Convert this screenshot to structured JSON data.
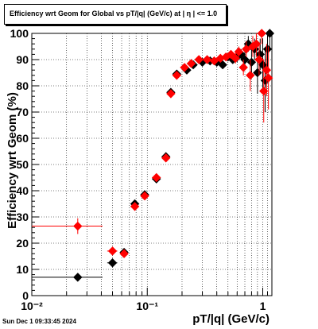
{
  "chart_data": {
    "type": "scatter",
    "title": "Efficiency wrt Geom for Global vs pT/|q| (GeV/c) at |  η  | <= 1.0",
    "xlabel": "pT/|q| (GeV/c)",
    "ylabel": "Efficiency wrt Geom (%)",
    "x_scale": "log",
    "xlim": [
      0.01,
      1.2
    ],
    "ylim": [
      0,
      100
    ],
    "x_tick_labels": [
      "10⁻²",
      "10⁻¹",
      "1"
    ],
    "y_tick_labels": [
      "0",
      "10",
      "20",
      "30",
      "40",
      "50",
      "60",
      "70",
      "80",
      "90",
      "100"
    ],
    "grid": true,
    "series": [
      {
        "marker": "diamond",
        "color": "#000000",
        "points": [
          {
            "x": 0.025,
            "y": 7,
            "xerr": [
              0.01,
              0.041
            ],
            "yerr": 0.5
          },
          {
            "x": 0.05,
            "y": 12.5,
            "xerr": [
              0.045,
              0.055
            ],
            "yerr": 1.2
          },
          {
            "x": 0.063,
            "y": 16.5,
            "xerr": [
              0.058,
              0.068
            ],
            "yerr": 1.2
          },
          {
            "x": 0.078,
            "y": 35,
            "xerr": [
              0.073,
              0.083
            ],
            "yerr": 1.3
          },
          {
            "x": 0.095,
            "y": 38.5,
            "xerr": [
              0.088,
              0.102
            ],
            "yerr": 1
          },
          {
            "x": 0.12,
            "y": 44.5,
            "xerr": [
              0.11,
              0.13
            ],
            "yerr": 1
          },
          {
            "x": 0.145,
            "y": 53,
            "xerr": [
              0.138,
              0.152
            ],
            "yerr": 1
          },
          {
            "x": 0.16,
            "y": 77.5,
            "xerr": [
              0.155,
              0.165
            ],
            "yerr": 1.5
          },
          {
            "x": 0.18,
            "y": 84.5,
            "xerr": [
              0.175,
              0.185
            ],
            "yerr": 1.5
          },
          {
            "x": 0.22,
            "y": 86,
            "xerr": [
              0.21,
              0.23
            ],
            "yerr": 1
          },
          {
            "x": 0.25,
            "y": 88,
            "xerr": [
              0.24,
              0.26
            ],
            "yerr": 1
          },
          {
            "x": 0.3,
            "y": 89,
            "xerr": [
              0.29,
              0.31
            ],
            "yerr": 1
          },
          {
            "x": 0.35,
            "y": 89.5,
            "xerr": [
              0.34,
              0.36
            ],
            "yerr": 1
          },
          {
            "x": 0.4,
            "y": 89,
            "xerr": [
              0.39,
              0.41
            ],
            "yerr": 1
          },
          {
            "x": 0.45,
            "y": 88,
            "xerr": [
              0.44,
              0.46
            ],
            "yerr": 1
          },
          {
            "x": 0.5,
            "y": 91,
            "xerr": [
              0.49,
              0.51
            ],
            "yerr": 1.5
          },
          {
            "x": 0.55,
            "y": 90,
            "xerr": [
              0.54,
              0.56
            ],
            "yerr": 1.5
          },
          {
            "x": 0.6,
            "y": 91,
            "xerr": [
              0.59,
              0.61
            ],
            "yerr": 2
          },
          {
            "x": 0.65,
            "y": 92,
            "xerr": [
              0.64,
              0.66
            ],
            "yerr": 2
          },
          {
            "x": 0.7,
            "y": 90,
            "xerr": [
              0.69,
              0.71
            ],
            "yerr": 3
          },
          {
            "x": 0.75,
            "y": 96,
            "xerr": [
              0.74,
              0.76
            ],
            "yerr": 3
          },
          {
            "x": 0.8,
            "y": 89,
            "xerr": [
              0.79,
              0.81
            ],
            "yerr": 5
          },
          {
            "x": 0.85,
            "y": 94,
            "xerr": [
              0.84,
              0.86
            ],
            "yerr": 4
          },
          {
            "x": 0.9,
            "y": 85,
            "xerr": [
              0.89,
              0.91
            ],
            "yerr": 8
          },
          {
            "x": 0.95,
            "y": 92,
            "xerr": [
              0.94,
              0.96
            ],
            "yerr": 6
          },
          {
            "x": 1.0,
            "y": 88,
            "xerr": [
              0.99,
              1.01
            ],
            "yerr": 10
          },
          {
            "x": 1.05,
            "y": 82,
            "xerr": [
              1.04,
              1.06
            ],
            "yerr": 12
          },
          {
            "x": 1.1,
            "y": 94,
            "xerr": [
              1.09,
              1.11
            ],
            "yerr": 8
          },
          {
            "x": 1.15,
            "y": 100,
            "xerr": [
              1.14,
              1.16
            ],
            "yerr": 6
          }
        ]
      },
      {
        "marker": "diamond",
        "color": "#ff0000",
        "points": [
          {
            "x": 0.025,
            "y": 26.5,
            "xerr": [
              0.01,
              0.041
            ],
            "yerr": 3
          },
          {
            "x": 0.05,
            "y": 17,
            "xerr": [
              0.045,
              0.055
            ],
            "yerr": 1.2
          },
          {
            "x": 0.063,
            "y": 16,
            "xerr": [
              0.058,
              0.068
            ],
            "yerr": 1.2
          },
          {
            "x": 0.078,
            "y": 34,
            "xerr": [
              0.073,
              0.083
            ],
            "yerr": 1.3
          },
          {
            "x": 0.095,
            "y": 38,
            "xerr": [
              0.088,
              0.102
            ],
            "yerr": 1
          },
          {
            "x": 0.12,
            "y": 45,
            "xerr": [
              0.11,
              0.13
            ],
            "yerr": 1
          },
          {
            "x": 0.145,
            "y": 52.5,
            "xerr": [
              0.138,
              0.152
            ],
            "yerr": 1
          },
          {
            "x": 0.16,
            "y": 77,
            "xerr": [
              0.155,
              0.165
            ],
            "yerr": 1.5
          },
          {
            "x": 0.18,
            "y": 84,
            "xerr": [
              0.175,
              0.185
            ],
            "yerr": 1.5
          },
          {
            "x": 0.21,
            "y": 87,
            "xerr": [
              0.2,
              0.22
            ],
            "yerr": 1
          },
          {
            "x": 0.24,
            "y": 88.5,
            "xerr": [
              0.23,
              0.25
            ],
            "yerr": 1
          },
          {
            "x": 0.28,
            "y": 90,
            "xerr": [
              0.27,
              0.29
            ],
            "yerr": 1
          },
          {
            "x": 0.33,
            "y": 90,
            "xerr": [
              0.32,
              0.34
            ],
            "yerr": 1
          },
          {
            "x": 0.38,
            "y": 89.5,
            "xerr": [
              0.37,
              0.39
            ],
            "yerr": 1
          },
          {
            "x": 0.43,
            "y": 90.5,
            "xerr": [
              0.42,
              0.44
            ],
            "yerr": 1
          },
          {
            "x": 0.48,
            "y": 91,
            "xerr": [
              0.47,
              0.49
            ],
            "yerr": 1.5
          },
          {
            "x": 0.53,
            "y": 92,
            "xerr": [
              0.52,
              0.54
            ],
            "yerr": 1.5
          },
          {
            "x": 0.58,
            "y": 90.5,
            "xerr": [
              0.57,
              0.59
            ],
            "yerr": 2
          },
          {
            "x": 0.62,
            "y": 93,
            "xerr": [
              0.61,
              0.63
            ],
            "yerr": 2
          },
          {
            "x": 0.68,
            "y": 87,
            "xerr": [
              0.67,
              0.69
            ],
            "yerr": 3
          },
          {
            "x": 0.72,
            "y": 94,
            "xerr": [
              0.71,
              0.73
            ],
            "yerr": 3
          },
          {
            "x": 0.78,
            "y": 84,
            "xerr": [
              0.77,
              0.79
            ],
            "yerr": 6
          },
          {
            "x": 0.82,
            "y": 95,
            "xerr": [
              0.81,
              0.83
            ],
            "yerr": 4
          },
          {
            "x": 0.88,
            "y": 96,
            "xerr": [
              0.87,
              0.89
            ],
            "yerr": 5
          },
          {
            "x": 0.93,
            "y": 90,
            "xerr": [
              0.92,
              0.94
            ],
            "yerr": 6
          },
          {
            "x": 0.98,
            "y": 100,
            "xerr": [
              0.97,
              0.99
            ],
            "yerr": 4
          },
          {
            "x": 1.02,
            "y": 78,
            "xerr": [
              1.01,
              1.03
            ],
            "yerr": 12
          },
          {
            "x": 1.08,
            "y": 86,
            "xerr": [
              1.07,
              1.09
            ],
            "yerr": 10
          },
          {
            "x": 1.12,
            "y": 83,
            "xerr": [
              1.11,
              1.13
            ],
            "yerr": 12
          }
        ]
      }
    ]
  },
  "timestamp": "Sun Dec  1 09:33:45 2024"
}
